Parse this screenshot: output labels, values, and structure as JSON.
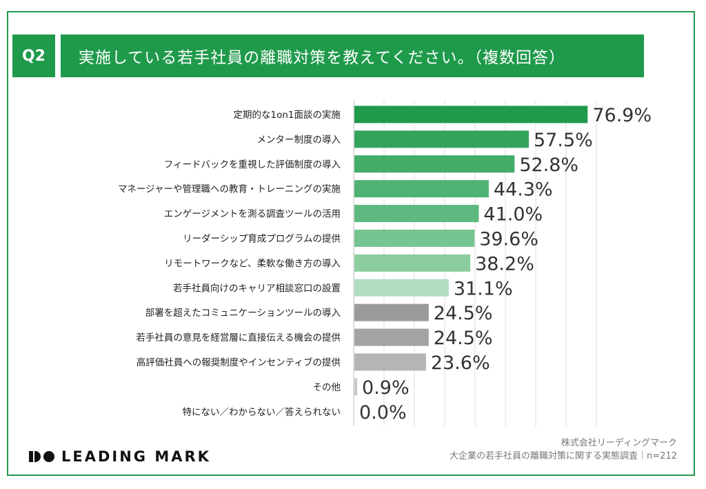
{
  "header": {
    "badge": "Q2",
    "title": "実施している若手社員の離職対策を教えてください。（複数回答）"
  },
  "chart_data": {
    "type": "bar",
    "orientation": "horizontal",
    "categories": [
      "定期的な1on1面談の実施",
      "メンター制度の導入",
      "フィードバックを重視した評価制度の導入",
      "マネージャーや管理職への教育・トレーニングの実施",
      "エンゲージメントを測る調査ツールの活用",
      "リーダーシップ育成プログラムの提供",
      "リモートワークなど、柔軟な働き方の導入",
      "若手社員向けのキャリア相談窓口の設置",
      "部署を超えたコミュニケーションツールの導入",
      "若手社員の意見を経営層に直接伝える機会の提供",
      "高評価社員への報奨制度やインセンティブの提供",
      "その他",
      "特にない／わからない／答えられない"
    ],
    "values": [
      76.9,
      57.5,
      52.8,
      44.3,
      41.0,
      39.6,
      38.2,
      31.1,
      24.5,
      24.5,
      23.6,
      0.9,
      0.0
    ],
    "value_labels": [
      "76.9%",
      "57.5%",
      "52.8%",
      "44.3%",
      "41.0%",
      "39.6%",
      "38.2%",
      "31.1%",
      "24.5%",
      "24.5%",
      "23.6%",
      "0.9%",
      "0.0%"
    ],
    "colors": [
      "#1f9a4b",
      "#33a35c",
      "#43ac69",
      "#4fb274",
      "#5db97f",
      "#76c491",
      "#8ccd9f",
      "#b2ddbe",
      "#9a9a9a",
      "#a3a3a3",
      "#b5b5b5",
      "#c8c8c8",
      "#c8c8c8"
    ],
    "xlim": [
      0,
      80
    ],
    "grid": true
  },
  "footer": {
    "logo_text": "LEADING MARK",
    "source_line1": "株式会社リーディングマーク",
    "source_line2": "大企業の若手社員の離職対策に関する実態調査｜n=212"
  }
}
